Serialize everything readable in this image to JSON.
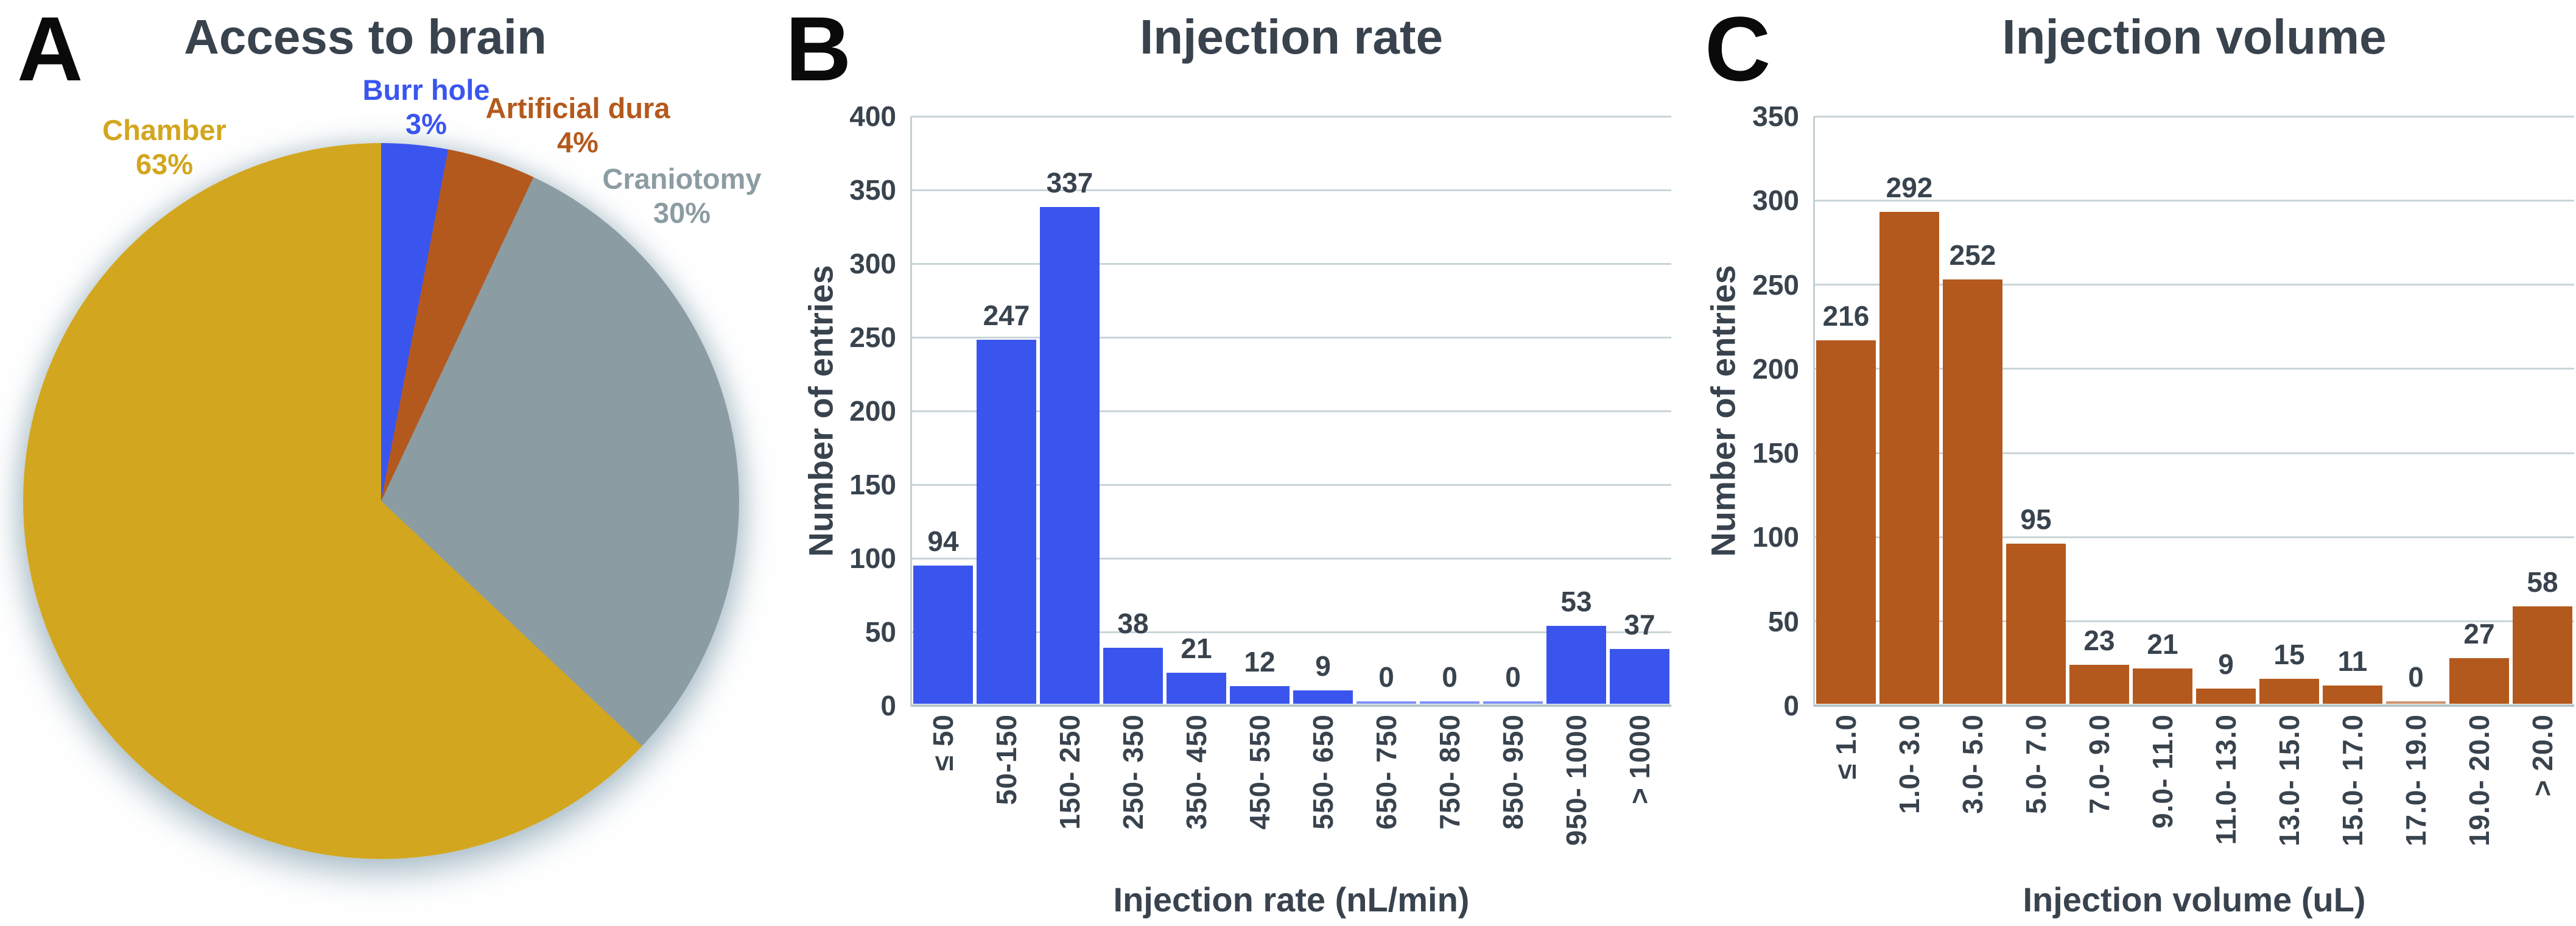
{
  "figure": {
    "background": "#FFFFFF",
    "text_color": "#39434E",
    "gridline_color": "#C9D5D8"
  },
  "chart_data": [
    {
      "type": "pie",
      "panel_letter": "A",
      "title": "Access to brain",
      "direction": "clockwise",
      "start_angle_deg": 0,
      "slices": [
        {
          "label": "Burr hole",
          "pct": 3,
          "pct_label": "3%",
          "color": "#3A55EE"
        },
        {
          "label": "Artificial dura",
          "pct": 4,
          "pct_label": "4%",
          "color": "#B4591D"
        },
        {
          "label": "Craniotomy",
          "pct": 30,
          "pct_label": "30%",
          "color": "#8C9CA3"
        },
        {
          "label": "Chamber",
          "pct": 63,
          "pct_label": "63%",
          "color": "#D2A61E"
        }
      ]
    },
    {
      "type": "bar",
      "panel_letter": "B",
      "title": "Injection rate",
      "xlabel": "Injection rate (nL/min)",
      "ylabel": "Number of entries",
      "ylim": [
        0,
        400
      ],
      "ytick_step": 50,
      "yticks": [
        0,
        50,
        100,
        150,
        200,
        250,
        300,
        350,
        400
      ],
      "grid": true,
      "legend": "none",
      "bar_color": "#3A55EE",
      "categories": [
        "≤ 50",
        "50-150",
        "150- 250",
        "250- 350",
        "350- 450",
        "450- 550",
        "550- 650",
        "650- 750",
        "750- 850",
        "850- 950",
        "950- 1000",
        "> 1000"
      ],
      "values": [
        94,
        247,
        337,
        38,
        21,
        12,
        9,
        0,
        0,
        0,
        53,
        37
      ]
    },
    {
      "type": "bar",
      "panel_letter": "C",
      "title": "Injection volume",
      "xlabel": "Injection volume (uL)",
      "ylabel": "Number of entries",
      "ylim": [
        0,
        350
      ],
      "ytick_step": 50,
      "yticks": [
        0,
        50,
        100,
        150,
        200,
        250,
        300,
        350
      ],
      "grid": true,
      "legend": "none",
      "bar_color": "#B4591D",
      "categories": [
        "≤ 1.0",
        "1.0- 3.0",
        "3.0- 5.0",
        "5.0- 7.0",
        "7.0- 9.0",
        "9.0- 11.0",
        "11.0- 13.0",
        "13.0- 15.0",
        "15.0- 17.0",
        "17.0- 19.0",
        "19.0- 20.0",
        "> 20.0"
      ],
      "values": [
        216,
        292,
        252,
        95,
        23,
        21,
        9,
        15,
        11,
        0,
        27,
        58
      ]
    }
  ]
}
